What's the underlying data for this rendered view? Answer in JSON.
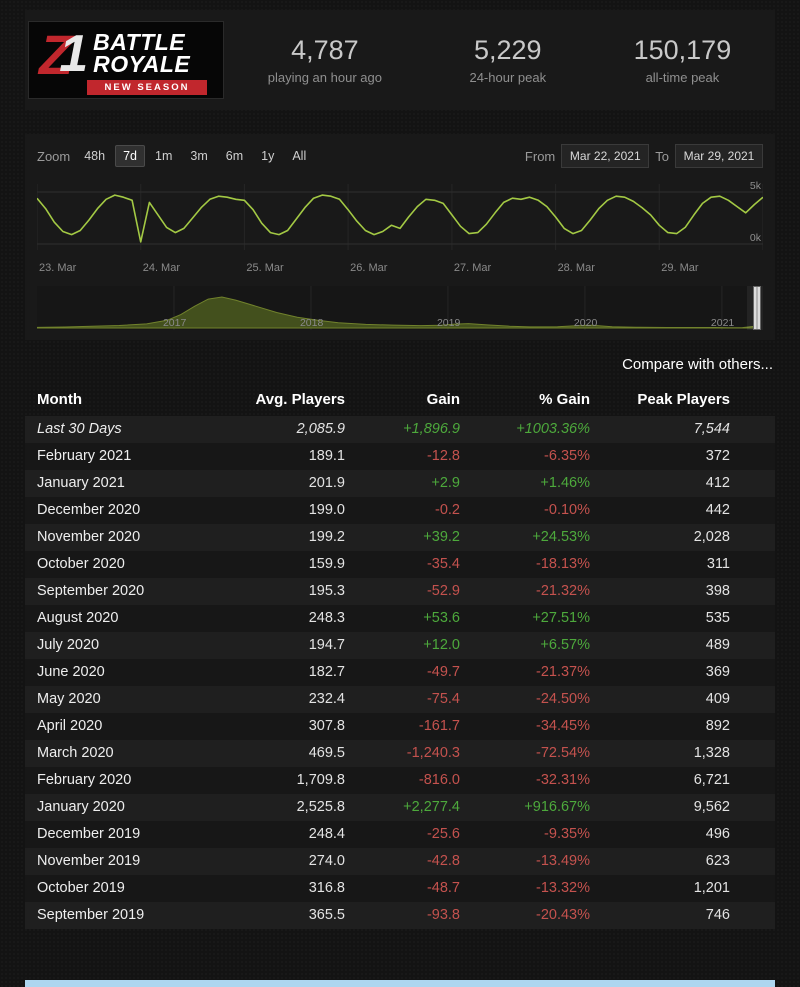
{
  "header": {
    "logo": {
      "z": "Z",
      "one": "1",
      "title_line1": "BATTLE",
      "title_line2": "ROYALE",
      "banner": "NEW SEASON"
    },
    "stats": [
      {
        "value": "4,787",
        "label": "playing an hour ago"
      },
      {
        "value": "5,229",
        "label": "24-hour peak"
      },
      {
        "value": "150,179",
        "label": "all-time peak"
      }
    ]
  },
  "chart": {
    "zoom_label": "Zoom",
    "zoom_options": [
      {
        "label": "48h",
        "selected": false
      },
      {
        "label": "7d",
        "selected": true
      },
      {
        "label": "1m",
        "selected": false
      },
      {
        "label": "3m",
        "selected": false
      },
      {
        "label": "6m",
        "selected": false
      },
      {
        "label": "1y",
        "selected": false
      },
      {
        "label": "All",
        "selected": false
      }
    ],
    "from_label": "From",
    "from_value": "Mar 22, 2021",
    "to_label": "To",
    "to_value": "Mar 29, 2021"
  },
  "chart_data": {
    "type": "line",
    "main": {
      "unit": "concurrent players (thousands)",
      "x_ticks": [
        "23. Mar",
        "24. Mar",
        "25. Mar",
        "26. Mar",
        "27. Mar",
        "28. Mar",
        "29. Mar"
      ],
      "y_ticks": [
        "5k",
        "0k"
      ],
      "ylim": [
        0,
        5.5
      ],
      "values": [
        4.4,
        3.4,
        2.1,
        1.2,
        0.9,
        1.3,
        2.3,
        3.4,
        4.3,
        4.7,
        4.5,
        4.2,
        0.2,
        4.0,
        2.8,
        1.6,
        1.1,
        1.5,
        2.5,
        3.5,
        4.3,
        4.6,
        4.5,
        4.3,
        4.2,
        3.3,
        2.0,
        1.1,
        0.9,
        1.3,
        2.4,
        3.5,
        4.4,
        4.7,
        4.6,
        4.3,
        3.3,
        2.2,
        1.3,
        0.9,
        1.2,
        1.8,
        1.5,
        2.6,
        3.6,
        4.3,
        4.2,
        3.9,
        2.8,
        1.7,
        1.0,
        1.1,
        1.9,
        3.0,
        4.0,
        4.4,
        4.3,
        4.5,
        4.2,
        3.6,
        2.6,
        1.5,
        1.0,
        1.3,
        2.3,
        3.4,
        4.2,
        4.6,
        4.5,
        4.1,
        3.5,
        2.8,
        1.8,
        1.1,
        1.0,
        1.6,
        2.8,
        3.9,
        4.5,
        4.6,
        4.2,
        3.6,
        3.0,
        3.8,
        4.5
      ]
    },
    "navigator": {
      "type": "area",
      "unit": "average players (thousands)",
      "year_ticks": [
        "2017",
        "2018",
        "2019",
        "2020",
        "2021"
      ],
      "x_range": [
        2016.0,
        2021.3
      ],
      "max_value": 31,
      "x_years": [
        2016.0,
        2016.2,
        2016.4,
        2016.6,
        2016.8,
        2016.95,
        2017.05,
        2017.15,
        2017.25,
        2017.35,
        2017.45,
        2017.6,
        2017.75,
        2017.9,
        2018.05,
        2018.2,
        2018.4,
        2018.6,
        2018.8,
        2018.95,
        2019.05,
        2019.15,
        2019.3,
        2019.45,
        2019.6,
        2019.8,
        2019.95,
        2020.05,
        2020.2,
        2020.4,
        2020.6,
        2020.8,
        2020.95,
        2021.05,
        2021.15,
        2021.27
      ],
      "values": [
        0.6,
        1.0,
        1.6,
        2.4,
        4.0,
        7.5,
        13,
        21,
        28,
        30,
        27,
        21,
        15,
        10.5,
        7.5,
        5,
        3.5,
        2.8,
        2.3,
        2.6,
        3.8,
        4.3,
        2.9,
        1.7,
        1.1,
        1.3,
        2.3,
        2.7,
        1.3,
        0.7,
        0.5,
        0.5,
        0.45,
        0.3,
        0.4,
        2.1
      ]
    }
  },
  "compare_link": "Compare with others...",
  "table": {
    "headers": [
      "Month",
      "Avg. Players",
      "Gain",
      "% Gain",
      "Peak Players"
    ],
    "rows": [
      {
        "month": "Last 30 Days",
        "avg": "2,085.9",
        "gain": "+1,896.9",
        "pct": "+1003.36%",
        "peak": "7,544",
        "italic": true
      },
      {
        "month": "February 2021",
        "avg": "189.1",
        "gain": "-12.8",
        "pct": "-6.35%",
        "peak": "372",
        "italic": false
      },
      {
        "month": "January 2021",
        "avg": "201.9",
        "gain": "+2.9",
        "pct": "+1.46%",
        "peak": "412",
        "italic": false
      },
      {
        "month": "December 2020",
        "avg": "199.0",
        "gain": "-0.2",
        "pct": "-0.10%",
        "peak": "442",
        "italic": false
      },
      {
        "month": "November 2020",
        "avg": "199.2",
        "gain": "+39.2",
        "pct": "+24.53%",
        "peak": "2,028",
        "italic": false
      },
      {
        "month": "October 2020",
        "avg": "159.9",
        "gain": "-35.4",
        "pct": "-18.13%",
        "peak": "311",
        "italic": false
      },
      {
        "month": "September 2020",
        "avg": "195.3",
        "gain": "-52.9",
        "pct": "-21.32%",
        "peak": "398",
        "italic": false
      },
      {
        "month": "August 2020",
        "avg": "248.3",
        "gain": "+53.6",
        "pct": "+27.51%",
        "peak": "535",
        "italic": false
      },
      {
        "month": "July 2020",
        "avg": "194.7",
        "gain": "+12.0",
        "pct": "+6.57%",
        "peak": "489",
        "italic": false
      },
      {
        "month": "June 2020",
        "avg": "182.7",
        "gain": "-49.7",
        "pct": "-21.37%",
        "peak": "369",
        "italic": false
      },
      {
        "month": "May 2020",
        "avg": "232.4",
        "gain": "-75.4",
        "pct": "-24.50%",
        "peak": "409",
        "italic": false
      },
      {
        "month": "April 2020",
        "avg": "307.8",
        "gain": "-161.7",
        "pct": "-34.45%",
        "peak": "892",
        "italic": false
      },
      {
        "month": "March 2020",
        "avg": "469.5",
        "gain": "-1,240.3",
        "pct": "-72.54%",
        "peak": "1,328",
        "italic": false
      },
      {
        "month": "February 2020",
        "avg": "1,709.8",
        "gain": "-816.0",
        "pct": "-32.31%",
        "peak": "6,721",
        "italic": false
      },
      {
        "month": "January 2020",
        "avg": "2,525.8",
        "gain": "+2,277.4",
        "pct": "+916.67%",
        "peak": "9,562",
        "italic": false
      },
      {
        "month": "December 2019",
        "avg": "248.4",
        "gain": "-25.6",
        "pct": "-9.35%",
        "peak": "496",
        "italic": false
      },
      {
        "month": "November 2019",
        "avg": "274.0",
        "gain": "-42.8",
        "pct": "-13.49%",
        "peak": "623",
        "italic": false
      },
      {
        "month": "October 2019",
        "avg": "316.8",
        "gain": "-48.7",
        "pct": "-13.32%",
        "peak": "1,201",
        "italic": false
      },
      {
        "month": "September 2019",
        "avg": "365.5",
        "gain": "-93.8",
        "pct": "-20.43%",
        "peak": "746",
        "italic": false
      }
    ]
  },
  "colors": {
    "positive": "#4da93c",
    "negative": "#c4524e",
    "chart_line": "#a3c944",
    "nav_fill": "#43501d",
    "nav_stroke": "#71822c",
    "logo_red": "#c1272d",
    "footer_strip": "#aed6f0"
  }
}
